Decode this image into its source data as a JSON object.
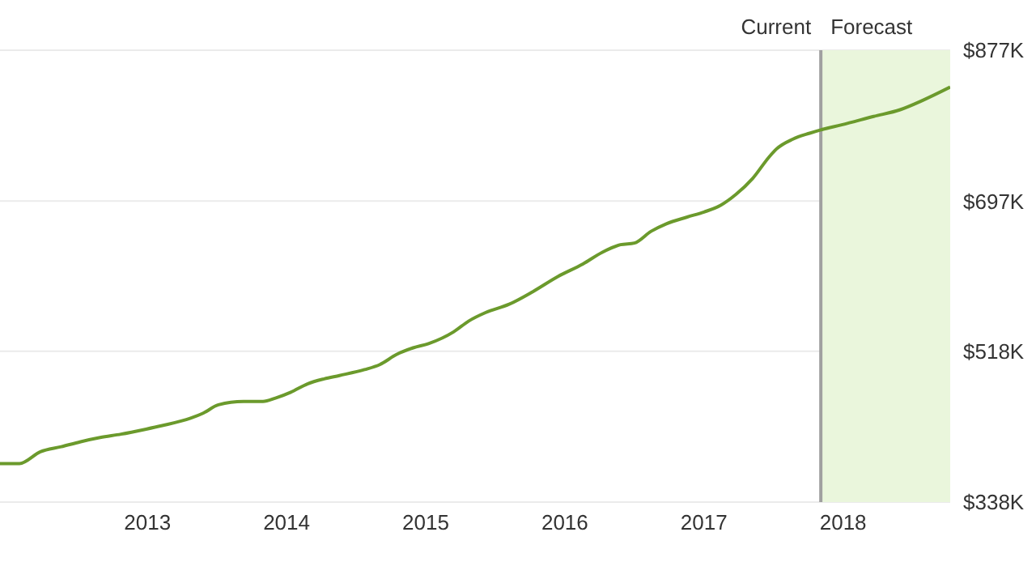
{
  "chart_data": {
    "type": "line",
    "x": [
      2011.94,
      2012.08,
      2012.23,
      2012.38,
      2012.52,
      2012.66,
      2012.81,
      2012.99,
      2013.1,
      2013.31,
      2013.4,
      2013.51,
      2013.69,
      2013.83,
      2013.92,
      2014.03,
      2014.15,
      2014.27,
      2014.38,
      2014.56,
      2014.67,
      2014.79,
      2014.91,
      2015.02,
      2015.2,
      2015.31,
      2015.43,
      2015.6,
      2015.77,
      2015.95,
      2016.13,
      2016.27,
      2016.4,
      2016.5,
      2016.62,
      2016.73,
      2016.88,
      2017.0,
      2017.12,
      2017.23,
      2017.35,
      2017.47,
      2017.52,
      2017.64,
      2017.76,
      2017.84,
      2017.99,
      2018.22,
      2018.41,
      2018.57,
      2018.77
    ],
    "series": [
      {
        "color": "#6b9a2c",
        "values": [
          384,
          384,
          398,
          404,
          410,
          415,
          419,
          425,
          429,
          438,
          444,
          454,
          458,
          458,
          462,
          469,
          479,
          485,
          489,
          496,
          502,
          514,
          522,
          527,
          541,
          554,
          564,
          574,
          589,
          607,
          622,
          636,
          645,
          647,
          661,
          670,
          678,
          684,
          692,
          705,
          724,
          750,
          759,
          771,
          778,
          782,
          788,
          798,
          806,
          817,
          833
        ]
      }
    ],
    "xlim": [
      2011.94,
      2018.77
    ],
    "xticks": [
      2013,
      2014,
      2015,
      2016,
      2017,
      2018
    ],
    "ylim": [
      338,
      877
    ],
    "yticks": [
      {
        "value": 338,
        "label": "$338K"
      },
      {
        "value": 518,
        "label": "$518K"
      },
      {
        "value": 697,
        "label": "$697K"
      },
      {
        "value": 877,
        "label": "$877K"
      }
    ],
    "grid": "y",
    "marker": "none",
    "line_style": "solid",
    "ref_lines": [
      {
        "axis": "x",
        "value": 2017.84,
        "label": "Current",
        "color": "#a0a0a0"
      }
    ],
    "bands": [
      {
        "axis": "x",
        "from": 2017.84,
        "to": 2018.77,
        "label": "Forecast",
        "color": "#eaf6dc"
      }
    ]
  }
}
